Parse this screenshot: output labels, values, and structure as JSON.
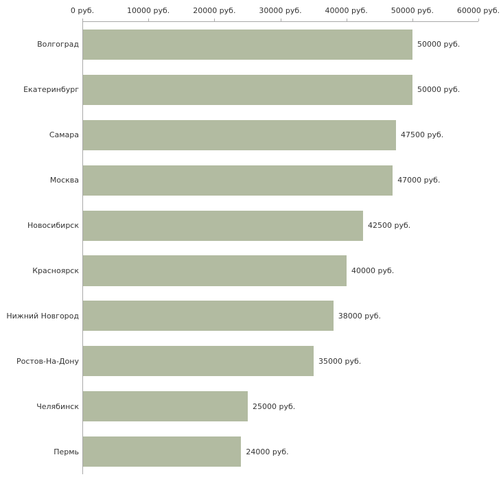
{
  "chart_data": {
    "type": "bar",
    "orientation": "horizontal",
    "categories": [
      "Волгоград",
      "Екатеринбург",
      "Самара",
      "Москва",
      "Новосибирск",
      "Красноярск",
      "Нижний Новгород",
      "Ростов-На-Дону",
      "Челябинск",
      "Пермь"
    ],
    "values": [
      50000,
      50000,
      47500,
      47000,
      42500,
      40000,
      38000,
      35000,
      25000,
      24000
    ],
    "value_labels": [
      "50000 руб.",
      "50000 руб.",
      "47500 руб.",
      "47000 руб.",
      "42500 руб.",
      "40000 руб.",
      "38000 руб.",
      "35000 руб.",
      "25000 руб.",
      "24000 руб."
    ],
    "xlim": [
      0,
      60000
    ],
    "x_ticks": [
      0,
      10000,
      20000,
      30000,
      40000,
      50000,
      60000
    ],
    "x_tick_labels": [
      "0 руб.",
      "10000 руб.",
      "20000 руб.",
      "30000 руб.",
      "40000 руб.",
      "50000 руб.",
      "60000 руб."
    ],
    "title": "",
    "xlabel": "",
    "ylabel": "",
    "grid": false,
    "legend": "none",
    "bar_color": "#b2bba1",
    "axis_color": "#a9a9a9"
  }
}
